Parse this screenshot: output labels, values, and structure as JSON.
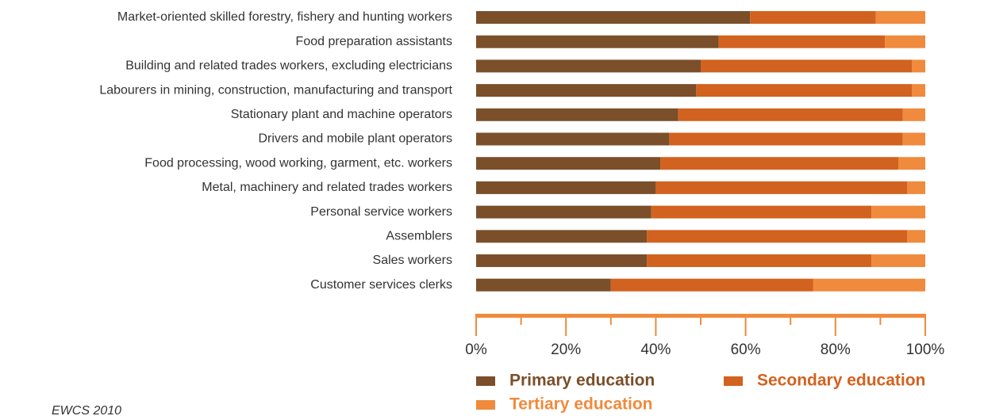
{
  "chart_data": {
    "type": "stacked_barh",
    "categories": [
      "Market-oriented skilled forestry, fishery and hunting workers",
      "Food preparation assistants",
      "Building and related trades workers, excluding electricians",
      "Labourers in mining, construction, manufacturing and transport",
      "Stationary plant and machine operators",
      "Drivers and mobile plant operators",
      "Food processing, wood working, garment, etc. workers",
      "Metal, machinery and related trades workers",
      "Personal service workers",
      "Assemblers",
      "Sales workers",
      "Customer services clerks"
    ],
    "series": [
      {
        "name": "Primary education",
        "color": "#7a4f2a",
        "values": [
          61,
          54,
          50,
          49,
          45,
          43,
          41,
          40,
          39,
          38,
          38,
          30
        ]
      },
      {
        "name": "Secondary education",
        "color": "#d2621f",
        "values": [
          28,
          37,
          47,
          48,
          50,
          52,
          53,
          56,
          49,
          58,
          50,
          45
        ]
      },
      {
        "name": "Tertiary education",
        "color": "#f08a3c",
        "values": [
          11,
          9,
          3,
          3,
          5,
          5,
          6,
          4,
          12,
          4,
          12,
          25
        ]
      }
    ],
    "xlim": [
      0,
      100
    ],
    "xticks": [
      {
        "value": 0,
        "label": "0%"
      },
      {
        "value": 20,
        "label": "20%"
      },
      {
        "value": 40,
        "label": "40%"
      },
      {
        "value": 60,
        "label": "60%"
      },
      {
        "value": 80,
        "label": "80%"
      },
      {
        "value": 100,
        "label": "100%"
      }
    ],
    "minor_xticks": [
      10,
      30,
      50,
      70,
      90
    ],
    "axis_color": "#f08a3c",
    "source": "EWCS 2010"
  }
}
